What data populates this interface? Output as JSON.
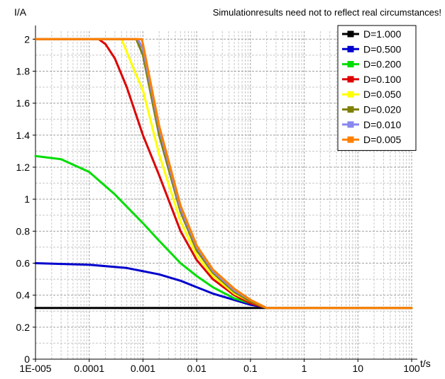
{
  "chart_data": {
    "type": "line",
    "note": "Simulationresults need not to reflect real circumstances!",
    "ylabel": "I/A",
    "xlabel": "t/s",
    "x_scale": "log",
    "xlim": [
      1e-05,
      100
    ],
    "ylim": [
      0,
      2.05
    ],
    "grid": true,
    "legend_position": "top-right",
    "x_tick_labels": [
      "1E-005",
      "0.0001",
      "0.001",
      "0.01",
      "0.1",
      "1",
      "10",
      "100"
    ],
    "x_tick_values": [
      1e-05,
      0.0001,
      0.001,
      0.01,
      0.1,
      1,
      10,
      100
    ],
    "y_tick_labels": [
      "0",
      "0.2",
      "0.4",
      "0.6",
      "0.8",
      "1",
      "1.2",
      "1.4",
      "1.6",
      "1.8",
      "2"
    ],
    "y_tick_values": [
      0,
      0.2,
      0.4,
      0.6,
      0.8,
      1.0,
      1.2,
      1.4,
      1.6,
      1.8,
      2.0
    ],
    "series": [
      {
        "name": "D=1.000",
        "color": "#000000",
        "x": [
          1e-05,
          100
        ],
        "y": [
          0.32,
          0.32
        ]
      },
      {
        "name": "D=0.500",
        "color": "#0000cc",
        "x": [
          1e-05,
          0.0001,
          0.0005,
          0.002,
          0.005,
          0.01,
          0.02,
          0.05,
          0.1,
          0.15,
          0.2,
          100
        ],
        "y": [
          0.6,
          0.59,
          0.57,
          0.53,
          0.49,
          0.45,
          0.41,
          0.37,
          0.34,
          0.33,
          0.32,
          0.32
        ]
      },
      {
        "name": "D=0.200",
        "color": "#00dd00",
        "x": [
          1e-05,
          3e-05,
          0.0001,
          0.0003,
          0.001,
          0.002,
          0.005,
          0.01,
          0.02,
          0.05,
          0.1,
          0.2,
          100
        ],
        "y": [
          1.27,
          1.25,
          1.17,
          1.03,
          0.85,
          0.74,
          0.6,
          0.52,
          0.45,
          0.38,
          0.35,
          0.32,
          0.32
        ]
      },
      {
        "name": "D=0.100",
        "color": "#dd0000",
        "x": [
          1e-05,
          0.00015,
          0.0002,
          0.0003,
          0.0005,
          0.001,
          0.002,
          0.005,
          0.01,
          0.02,
          0.05,
          0.1,
          0.2,
          100
        ],
        "y": [
          2.0,
          2.0,
          1.97,
          1.88,
          1.7,
          1.4,
          1.15,
          0.8,
          0.62,
          0.5,
          0.4,
          0.35,
          0.32,
          0.32
        ]
      },
      {
        "name": "D=0.050",
        "color": "#ffff00",
        "x": [
          1e-05,
          0.0004,
          0.0007,
          0.001,
          0.002,
          0.005,
          0.01,
          0.02,
          0.05,
          0.1,
          0.2,
          100
        ],
        "y": [
          2.0,
          2.0,
          1.8,
          1.68,
          1.28,
          0.86,
          0.65,
          0.52,
          0.41,
          0.36,
          0.32,
          0.32
        ]
      },
      {
        "name": "D=0.020",
        "color": "#808000",
        "x": [
          1e-05,
          0.00075,
          0.001,
          0.002,
          0.005,
          0.01,
          0.02,
          0.05,
          0.1,
          0.2,
          100
        ],
        "y": [
          2.0,
          2.0,
          1.9,
          1.4,
          0.92,
          0.68,
          0.54,
          0.42,
          0.36,
          0.32,
          0.32
        ]
      },
      {
        "name": "D=0.010",
        "color": "#8888ee",
        "x": [
          1e-05,
          0.0008,
          0.001,
          0.002,
          0.005,
          0.01,
          0.02,
          0.05,
          0.1,
          0.2,
          100
        ],
        "y": [
          2.0,
          2.0,
          1.94,
          1.44,
          0.94,
          0.7,
          0.55,
          0.43,
          0.37,
          0.32,
          0.32
        ]
      },
      {
        "name": "D=0.005",
        "color": "#ff8000",
        "x": [
          1e-05,
          0.00095,
          0.001,
          0.002,
          0.005,
          0.01,
          0.02,
          0.05,
          0.1,
          0.2,
          100
        ],
        "y": [
          2.0,
          2.0,
          1.97,
          1.46,
          0.96,
          0.71,
          0.56,
          0.44,
          0.37,
          0.32,
          0.32
        ]
      }
    ]
  }
}
